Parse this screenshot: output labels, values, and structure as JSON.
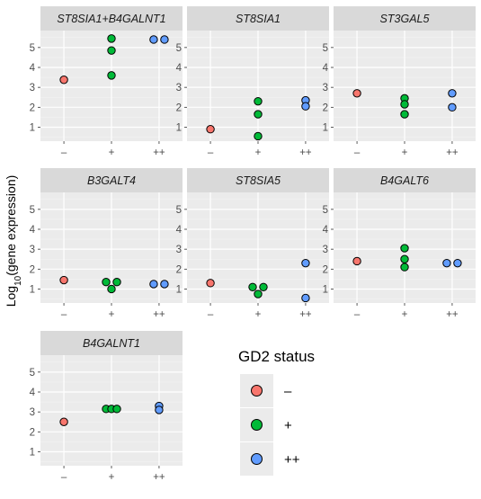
{
  "chart_data": {
    "type": "scatter",
    "facet_grid": "3x3",
    "ylabel_prefix": "Log",
    "ylabel_subscript": "10",
    "ylabel_suffix": "(gene expression)",
    "categories": [
      "–",
      "+",
      "++"
    ],
    "yticks": [
      1,
      2,
      3,
      4,
      5
    ],
    "ylim": [
      0.3,
      5.85
    ],
    "colors": {
      "–": "#F8766D",
      "+": "#00BA38",
      "++": "#619CFF"
    },
    "legend": {
      "title": "GD2 status",
      "placement": "bottom-right",
      "entries": [
        {
          "label": "–",
          "color": "#F8766D"
        },
        {
          "label": "+",
          "color": "#00BA38"
        },
        {
          "label": "++",
          "color": "#619CFF"
        }
      ]
    },
    "panels": [
      {
        "title": "ST8SIA1+B4GALNT1",
        "points": [
          {
            "group": "–",
            "y": 3.38,
            "jitter": 0
          },
          {
            "group": "+",
            "y": 5.45,
            "jitter": 0
          },
          {
            "group": "+",
            "y": 4.85,
            "jitter": 0
          },
          {
            "group": "+",
            "y": 3.6,
            "jitter": 0
          },
          {
            "group": "++",
            "y": 5.4,
            "jitter": -1
          },
          {
            "group": "++",
            "y": 5.4,
            "jitter": 1
          }
        ]
      },
      {
        "title": "ST8SIA1",
        "points": [
          {
            "group": "–",
            "y": 0.9,
            "jitter": 0
          },
          {
            "group": "+",
            "y": 2.3,
            "jitter": 0
          },
          {
            "group": "+",
            "y": 1.65,
            "jitter": 0
          },
          {
            "group": "+",
            "y": 0.55,
            "jitter": 0
          },
          {
            "group": "++",
            "y": 2.35,
            "jitter": 0
          },
          {
            "group": "++",
            "y": 2.05,
            "jitter": 0
          }
        ]
      },
      {
        "title": "ST3GAL5",
        "points": [
          {
            "group": "–",
            "y": 2.7,
            "jitter": 0
          },
          {
            "group": "+",
            "y": 2.45,
            "jitter": 0
          },
          {
            "group": "+",
            "y": 2.15,
            "jitter": 0
          },
          {
            "group": "+",
            "y": 1.65,
            "jitter": 0
          },
          {
            "group": "++",
            "y": 2.7,
            "jitter": 0
          },
          {
            "group": "++",
            "y": 2.0,
            "jitter": 0
          }
        ]
      },
      {
        "title": "B3GALT4",
        "points": [
          {
            "group": "–",
            "y": 1.45,
            "jitter": 0
          },
          {
            "group": "+",
            "y": 1.35,
            "jitter": -1
          },
          {
            "group": "+",
            "y": 1.35,
            "jitter": 1
          },
          {
            "group": "+",
            "y": 1.0,
            "jitter": 0
          },
          {
            "group": "++",
            "y": 1.25,
            "jitter": -1
          },
          {
            "group": "++",
            "y": 1.25,
            "jitter": 1
          }
        ]
      },
      {
        "title": "ST8SIA5",
        "points": [
          {
            "group": "–",
            "y": 1.3,
            "jitter": 0
          },
          {
            "group": "+",
            "y": 1.1,
            "jitter": -1
          },
          {
            "group": "+",
            "y": 1.1,
            "jitter": 1
          },
          {
            "group": "+",
            "y": 0.75,
            "jitter": 0
          },
          {
            "group": "++",
            "y": 2.3,
            "jitter": 0
          },
          {
            "group": "++",
            "y": 0.55,
            "jitter": 0
          }
        ]
      },
      {
        "title": "B4GALT6",
        "points": [
          {
            "group": "–",
            "y": 2.4,
            "jitter": 0
          },
          {
            "group": "+",
            "y": 3.05,
            "jitter": 0
          },
          {
            "group": "+",
            "y": 2.5,
            "jitter": 0
          },
          {
            "group": "+",
            "y": 2.1,
            "jitter": 0
          },
          {
            "group": "++",
            "y": 2.3,
            "jitter": -1
          },
          {
            "group": "++",
            "y": 2.3,
            "jitter": 1
          }
        ]
      },
      {
        "title": "B4GALNT1",
        "points": [
          {
            "group": "–",
            "y": 2.5,
            "jitter": 0
          },
          {
            "group": "+",
            "y": 3.15,
            "jitter": -1
          },
          {
            "group": "+",
            "y": 3.15,
            "jitter": 0
          },
          {
            "group": "+",
            "y": 3.15,
            "jitter": 1
          },
          {
            "group": "++",
            "y": 3.3,
            "jitter": 0
          },
          {
            "group": "++",
            "y": 3.1,
            "jitter": 0
          }
        ]
      }
    ]
  }
}
